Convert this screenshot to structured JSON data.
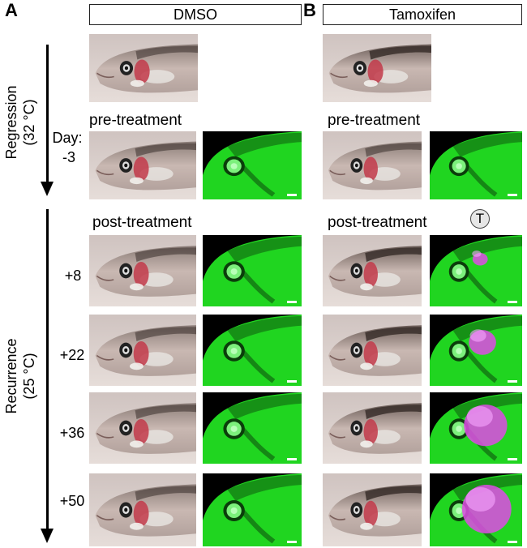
{
  "panels": {
    "a": "A",
    "b": "B"
  },
  "groups": {
    "dmso": "DMSO",
    "tamoxifen": "Tamoxifen"
  },
  "phases": {
    "regression": "Regression",
    "regression_temp": "(32 °C)",
    "recurrence": "Recurrence",
    "recurrence_temp": "(25 °C)"
  },
  "captions": {
    "pre": "pre-treatment",
    "post": "post-treatment"
  },
  "day_label": "Day:",
  "days": [
    "-3",
    "+8",
    "+22",
    "+36",
    "+50"
  ],
  "treatment_badge": "T",
  "colors": {
    "gfp": "#22e022",
    "mcherry": "#e04ae8",
    "background": "#ffffff"
  }
}
